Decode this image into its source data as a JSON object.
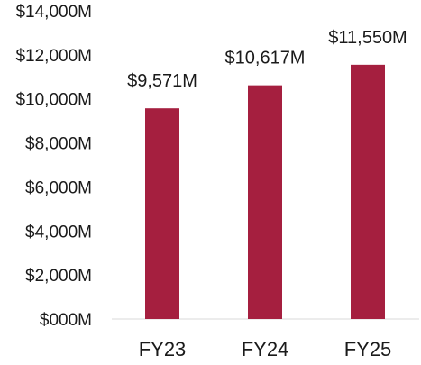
{
  "chart_data": {
    "type": "bar",
    "categories": [
      "FY23",
      "FY24",
      "FY25"
    ],
    "values": [
      9571,
      10617,
      11550
    ],
    "data_labels": [
      "$9,571M",
      "$10,617M",
      "$11,550M"
    ],
    "ylim": [
      0,
      14000
    ],
    "y_ticks": [
      0,
      2000,
      4000,
      6000,
      8000,
      10000,
      12000,
      14000
    ],
    "y_tick_labels": [
      "$000M",
      "$2,000M",
      "$4,000M",
      "$6,000M",
      "$8,000M",
      "$10,000M",
      "$12,000M",
      "$14,000M"
    ],
    "bar_color": "#a51f3f",
    "grid": false
  }
}
